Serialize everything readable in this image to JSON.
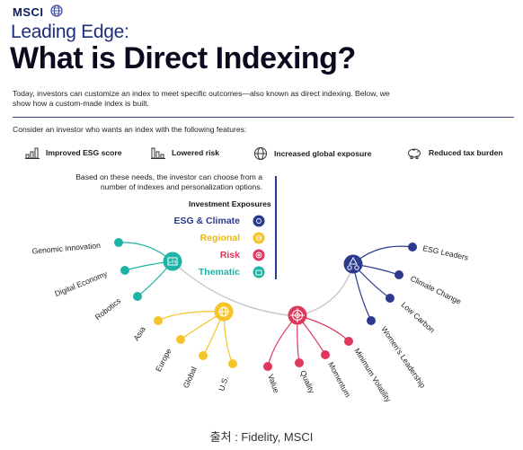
{
  "header": {
    "brand": "MSCI",
    "kicker": "Leading Edge:",
    "title": "What is Direct Indexing?",
    "intro": "Today, investors can customize an index to meet specific outcomes—also known as direct indexing. Below, we show how a custom-made index is built.",
    "consider": "Consider an investor who wants an index with the following features:"
  },
  "features": [
    {
      "label": "Improved ESG score",
      "icon": "bar-chart-up-icon"
    },
    {
      "label": "Lowered risk",
      "icon": "bar-chart-down-icon"
    },
    {
      "label": "Increased global exposure",
      "icon": "globe-icon"
    },
    {
      "label": "Reduced tax burden",
      "icon": "piggy-bank-icon"
    }
  ],
  "panel": {
    "choose_text": "Based on these needs, the investor can choose from a number of indexes and personalization options.",
    "heading": "Investment Exposures"
  },
  "exposures": [
    {
      "label": "ESG & Climate",
      "color": "#2b3a8f",
      "icon": "leaf-icon"
    },
    {
      "label": "Regional",
      "color": "#f5c428",
      "icon": "globe-icon"
    },
    {
      "label": "Risk",
      "color": "#e0385a",
      "icon": "target-icon"
    },
    {
      "label": "Thematic",
      "color": "#1fb3a6",
      "icon": "chart-icon"
    }
  ],
  "branches": {
    "thematic": [
      "Genomic Innovation",
      "Digital Economy",
      "Robotics"
    ],
    "regional": [
      "Asia",
      "Europe",
      "Global",
      "U.S."
    ],
    "risk": [
      "Value",
      "Quality",
      "Momentum",
      "Minimum Volatility"
    ],
    "esg": [
      "ESG Leaders",
      "Climate Change",
      "Low Carbon",
      "Women's Leadership"
    ]
  },
  "source": "출처 : Fidelity, MSCI"
}
